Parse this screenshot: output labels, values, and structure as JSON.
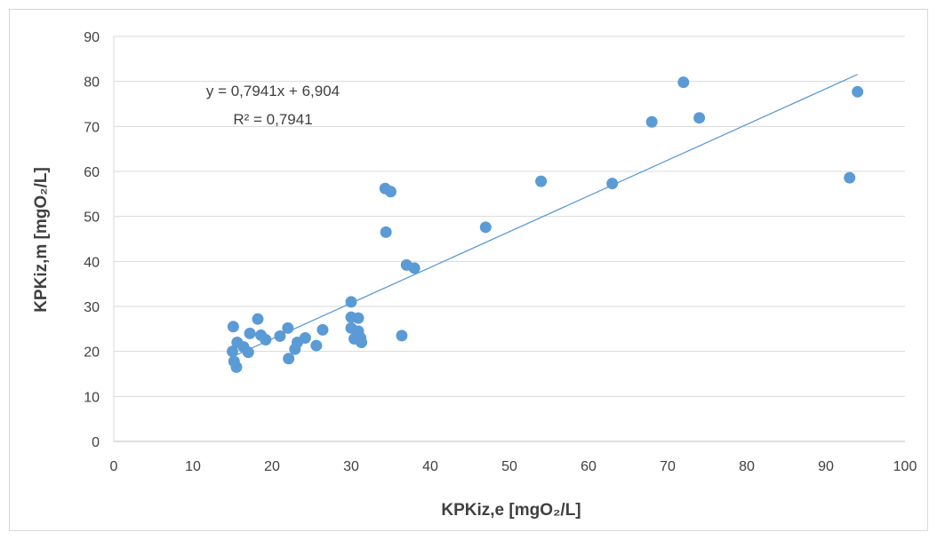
{
  "chart_data": {
    "type": "scatter",
    "xlabel": "KPKiz,e [mgO₂/L]",
    "ylabel": "KPKiz,m [mgO₂/L]",
    "xlim": [
      0,
      100
    ],
    "ylim": [
      0,
      90
    ],
    "x_ticks": [
      "0",
      "10",
      "20",
      "30",
      "40",
      "50",
      "60",
      "70",
      "80",
      "90",
      "100"
    ],
    "y_ticks": [
      "0",
      "10",
      "20",
      "30",
      "40",
      "50",
      "60",
      "70",
      "80",
      "90"
    ],
    "grid": "horizontal",
    "marker_color": "#5B9BD5",
    "trendline": {
      "type": "linear",
      "slope": 0.7941,
      "intercept": 6.904,
      "x_range": [
        15,
        94
      ],
      "equation_label": "y = 0,7941x + 6,904",
      "r2_label": "R² = 0,7941",
      "color": "#5B9BD5"
    },
    "points": [
      {
        "x": 15.1,
        "y": 25.5
      },
      {
        "x": 15.0,
        "y": 20.0
      },
      {
        "x": 15.2,
        "y": 17.8
      },
      {
        "x": 15.5,
        "y": 16.5
      },
      {
        "x": 15.6,
        "y": 22.0
      },
      {
        "x": 16.4,
        "y": 21.0
      },
      {
        "x": 17.0,
        "y": 19.8
      },
      {
        "x": 17.2,
        "y": 24.0
      },
      {
        "x": 18.2,
        "y": 27.2
      },
      {
        "x": 18.6,
        "y": 23.6
      },
      {
        "x": 19.2,
        "y": 22.6
      },
      {
        "x": 21.0,
        "y": 23.4
      },
      {
        "x": 22.0,
        "y": 25.2
      },
      {
        "x": 22.1,
        "y": 18.4
      },
      {
        "x": 22.9,
        "y": 20.5
      },
      {
        "x": 23.2,
        "y": 22.0
      },
      {
        "x": 24.2,
        "y": 23.0
      },
      {
        "x": 25.6,
        "y": 21.3
      },
      {
        "x": 26.4,
        "y": 24.8
      },
      {
        "x": 30.0,
        "y": 31.0
      },
      {
        "x": 30.0,
        "y": 27.6
      },
      {
        "x": 30.0,
        "y": 25.2
      },
      {
        "x": 30.4,
        "y": 22.8
      },
      {
        "x": 30.9,
        "y": 24.5
      },
      {
        "x": 30.9,
        "y": 27.4
      },
      {
        "x": 31.2,
        "y": 23.0
      },
      {
        "x": 31.3,
        "y": 22.0
      },
      {
        "x": 34.3,
        "y": 56.2
      },
      {
        "x": 35.0,
        "y": 55.5
      },
      {
        "x": 34.4,
        "y": 46.5
      },
      {
        "x": 36.4,
        "y": 23.5
      },
      {
        "x": 37.0,
        "y": 39.2
      },
      {
        "x": 38.0,
        "y": 38.5
      },
      {
        "x": 47.0,
        "y": 47.6
      },
      {
        "x": 54.0,
        "y": 57.8
      },
      {
        "x": 63.0,
        "y": 57.3
      },
      {
        "x": 68.0,
        "y": 71.0
      },
      {
        "x": 72.0,
        "y": 79.8
      },
      {
        "x": 74.0,
        "y": 71.9
      },
      {
        "x": 93.0,
        "y": 58.6
      },
      {
        "x": 94.0,
        "y": 77.7
      }
    ]
  }
}
